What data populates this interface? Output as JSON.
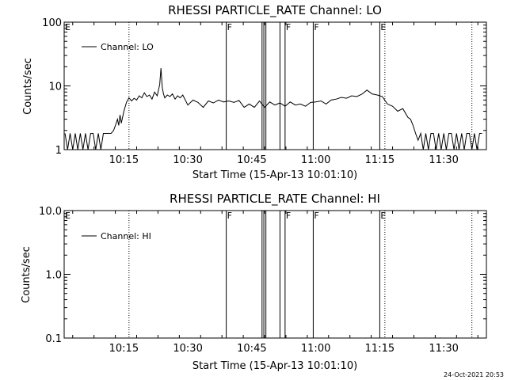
{
  "chart_data": [
    {
      "type": "line",
      "title": "RHESSI PARTICLE_RATE Channel: LO",
      "xlabel": "Start Time (15-Apr-13 10:01:10)",
      "ylabel": "Counts/sec",
      "y_scale": "log",
      "ylim": [
        1,
        100
      ],
      "y_ticks": [
        "1",
        "10",
        "100"
      ],
      "x_range_minutes": [
        10.0167,
        11.6667
      ],
      "x_tick_labels": [
        "10:15",
        "10:30",
        "10:45",
        "11:00",
        "11:15",
        "11:30"
      ],
      "x_tick_values": [
        10.25,
        10.5,
        10.75,
        11.0,
        11.25,
        11.5
      ],
      "legend": "Channel: LO",
      "legend_position": "top-left",
      "series": [
        {
          "name": "Channel: LO",
          "x": [
            10.02,
            10.03,
            10.04,
            10.05,
            10.06,
            10.07,
            10.08,
            10.09,
            10.1,
            10.11,
            10.12,
            10.13,
            10.14,
            10.15,
            10.16,
            10.17,
            10.18,
            10.19,
            10.2,
            10.21,
            10.22,
            10.225,
            10.23,
            10.235,
            10.24,
            10.25,
            10.26,
            10.27,
            10.28,
            10.29,
            10.3,
            10.31,
            10.32,
            10.33,
            10.34,
            10.35,
            10.36,
            10.37,
            10.38,
            10.39,
            10.395,
            10.4,
            10.405,
            10.41,
            10.42,
            10.43,
            10.44,
            10.45,
            10.46,
            10.47,
            10.48,
            10.5,
            10.52,
            10.54,
            10.56,
            10.58,
            10.6,
            10.62,
            10.64,
            10.66,
            10.68,
            10.7,
            10.72,
            10.74,
            10.76,
            10.78,
            10.8,
            10.82,
            10.84,
            10.86,
            10.88,
            10.9,
            10.92,
            10.94,
            10.96,
            10.98,
            11.0,
            11.02,
            11.04,
            11.06,
            11.08,
            11.1,
            11.12,
            11.14,
            11.16,
            11.18,
            11.2,
            11.22,
            11.24,
            11.26,
            11.28,
            11.3,
            11.32,
            11.34,
            11.36,
            11.37,
            11.38,
            11.39,
            11.4,
            11.41,
            11.42,
            11.43,
            11.44,
            11.45,
            11.46,
            11.47,
            11.48,
            11.49,
            11.5,
            11.51,
            11.52,
            11.53,
            11.54,
            11.55,
            11.56,
            11.57,
            11.58,
            11.59,
            11.6,
            11.61,
            11.62,
            11.63,
            11.64,
            11.65
          ],
          "values": [
            1.8,
            1.0,
            1.8,
            1.0,
            1.8,
            1.0,
            1.8,
            1.0,
            1.8,
            1.0,
            1.8,
            1.8,
            1.0,
            1.8,
            1.0,
            1.8,
            1.8,
            1.8,
            1.8,
            2.0,
            2.6,
            3.0,
            2.4,
            3.5,
            2.6,
            4.0,
            5.5,
            6.5,
            5.8,
            6.4,
            6.0,
            7.0,
            6.5,
            7.8,
            6.8,
            7.2,
            6.2,
            8.0,
            7.0,
            10.5,
            19.0,
            9.5,
            7.5,
            6.5,
            7.2,
            6.8,
            7.5,
            6.2,
            7.0,
            6.5,
            7.2,
            5.0,
            6.0,
            5.5,
            4.6,
            5.8,
            5.4,
            6.0,
            5.6,
            5.8,
            5.5,
            5.9,
            4.6,
            5.2,
            4.6,
            5.8,
            4.6,
            5.6,
            5.0,
            5.4,
            4.8,
            5.6,
            5.0,
            5.2,
            4.8,
            5.5,
            5.6,
            5.8,
            5.2,
            6.0,
            6.2,
            6.6,
            6.4,
            7.0,
            6.8,
            7.4,
            8.6,
            7.5,
            7.2,
            6.8,
            5.2,
            4.8,
            4.0,
            4.4,
            3.2,
            3.0,
            2.4,
            1.8,
            1.4,
            1.8,
            1.0,
            1.8,
            1.0,
            1.8,
            1.8,
            1.0,
            1.8,
            1.0,
            1.8,
            1.0,
            1.8,
            1.8,
            1.0,
            1.8,
            1.0,
            1.8,
            1.0,
            1.8,
            1.8,
            1.0,
            1.8,
            1.0,
            1.8,
            1.8
          ]
        }
      ]
    },
    {
      "type": "line",
      "title": "RHESSI PARTICLE_RATE Channel: HI",
      "xlabel": "Start Time (15-Apr-13 10:01:10)",
      "ylabel": "Counts/sec",
      "y_scale": "log",
      "ylim": [
        0.1,
        10.0
      ],
      "y_ticks": [
        "0.1",
        "1.0",
        "10.0"
      ],
      "x_range_minutes": [
        10.0167,
        11.6667
      ],
      "x_tick_labels": [
        "10:15",
        "10:30",
        "10:45",
        "11:00",
        "11:15",
        "11:30"
      ],
      "x_tick_values": [
        10.25,
        10.5,
        10.75,
        11.0,
        11.25,
        11.5
      ],
      "legend": "Channel: HI",
      "legend_position": "top-left",
      "series": [
        {
          "name": "Channel: HI",
          "x": [],
          "values": []
        }
      ]
    }
  ],
  "flags": {
    "solid_lines": [
      {
        "x": 10.65,
        "label": "F"
      },
      {
        "x": 10.797,
        "label": ""
      },
      {
        "x": 10.88,
        "label": "F"
      },
      {
        "x": 10.99,
        "label": "F"
      },
      {
        "x": 11.25,
        "label": "E"
      }
    ],
    "dotted_lines": [
      10.27,
      11.27,
      11.61
    ],
    "extra_left_label": "E"
  },
  "footer": {
    "timestamp": "24-Oct-2021 20:53"
  }
}
